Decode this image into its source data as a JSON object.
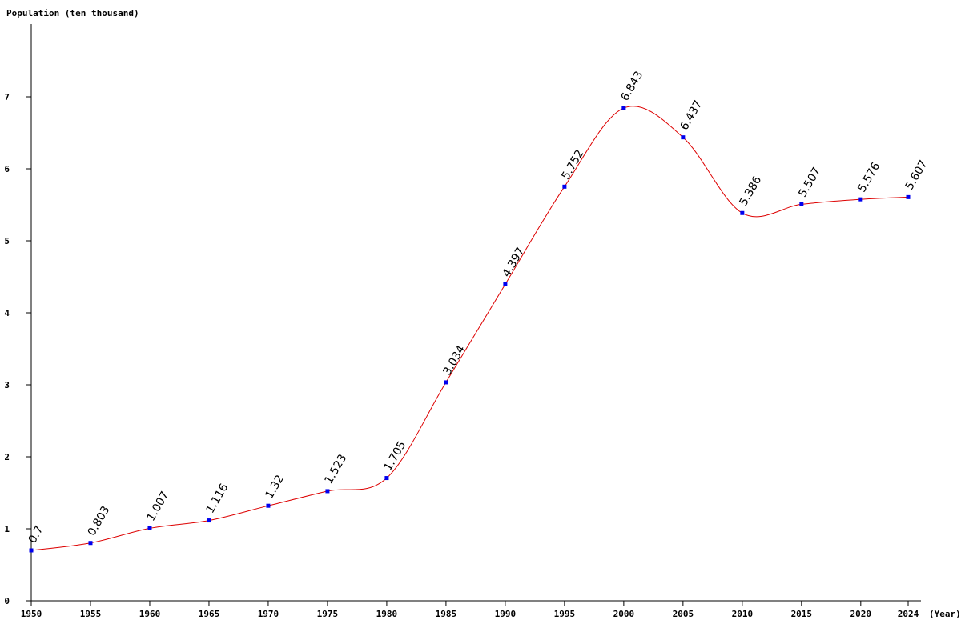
{
  "chart_data": {
    "type": "line",
    "ylabel": "Population (ten thousand)",
    "xlabel": "(Year)",
    "x": [
      1950,
      1955,
      1960,
      1965,
      1970,
      1975,
      1980,
      1985,
      1990,
      1995,
      2000,
      2005,
      2010,
      2015,
      2020,
      2024
    ],
    "values": [
      0.7,
      0.803,
      1.007,
      1.116,
      1.32,
      1.523,
      1.705,
      3.034,
      4.397,
      5.752,
      6.843,
      6.437,
      5.386,
      5.507,
      5.576,
      5.607
    ],
    "data_labels": [
      "0.7",
      "0.803",
      "1.007",
      "1.116",
      "1.32",
      "1.523",
      "1.705",
      "3.034",
      "4.397",
      "5.752",
      "6.843",
      "6.437",
      "5.386",
      "5.507",
      "5.576",
      "5.607"
    ],
    "x_ticks": [
      "1950",
      "1955",
      "1960",
      "1965",
      "1970",
      "1975",
      "1980",
      "1985",
      "1990",
      "1995",
      "2000",
      "2005",
      "2010",
      "2015",
      "2020",
      "2024"
    ],
    "y_ticks": [
      "0",
      "1",
      "2",
      "3",
      "4",
      "5",
      "6",
      "7"
    ],
    "ylim": [
      0,
      8
    ],
    "grid": false,
    "line_color": "#dd0000",
    "marker_color": "#0000ee"
  }
}
